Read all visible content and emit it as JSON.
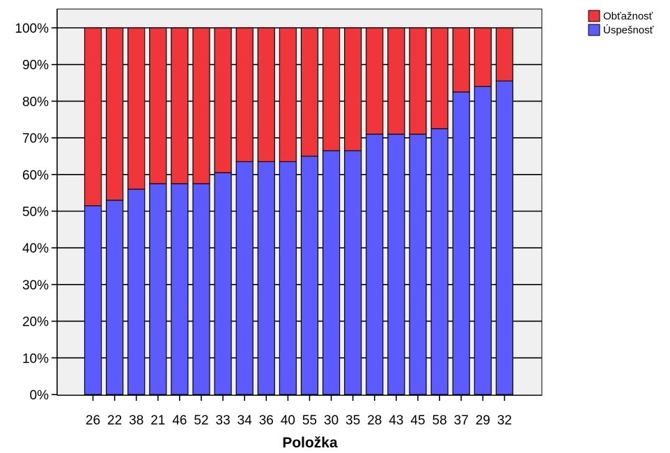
{
  "chart_data": {
    "type": "bar",
    "stacked": true,
    "percent_scale": true,
    "title": "",
    "xlabel": "Položka",
    "ylabel": "",
    "ylim": [
      0,
      100
    ],
    "y_tick_suffix": "%",
    "y_ticks": [
      0,
      10,
      20,
      30,
      40,
      50,
      60,
      70,
      80,
      90,
      100
    ],
    "grid": "horizontal",
    "legend_position": "top-right",
    "categories": [
      "26",
      "22",
      "38",
      "21",
      "46",
      "52",
      "33",
      "34",
      "36",
      "40",
      "55",
      "30",
      "35",
      "28",
      "43",
      "45",
      "58",
      "37",
      "29",
      "32"
    ],
    "series": [
      {
        "name": "Úspešnosť",
        "color": "#5b5bff",
        "values": [
          51.5,
          53,
          56,
          57.5,
          57.5,
          57.5,
          60.5,
          63.5,
          63.5,
          63.5,
          65,
          66.5,
          66.5,
          71,
          71,
          71,
          72.5,
          82.5,
          84,
          85.5
        ]
      },
      {
        "name": "Obťažnosť",
        "color": "#f0353b",
        "values": [
          48.5,
          47,
          44,
          42.5,
          42.5,
          42.5,
          39.5,
          36.5,
          36.5,
          36.5,
          35,
          33.5,
          33.5,
          29,
          29,
          29,
          27.5,
          17.5,
          16,
          14.5
        ]
      }
    ],
    "legend_order": [
      "Obťažnosť",
      "Úspešnosť"
    ],
    "plot_background": "#f0f0f0"
  }
}
